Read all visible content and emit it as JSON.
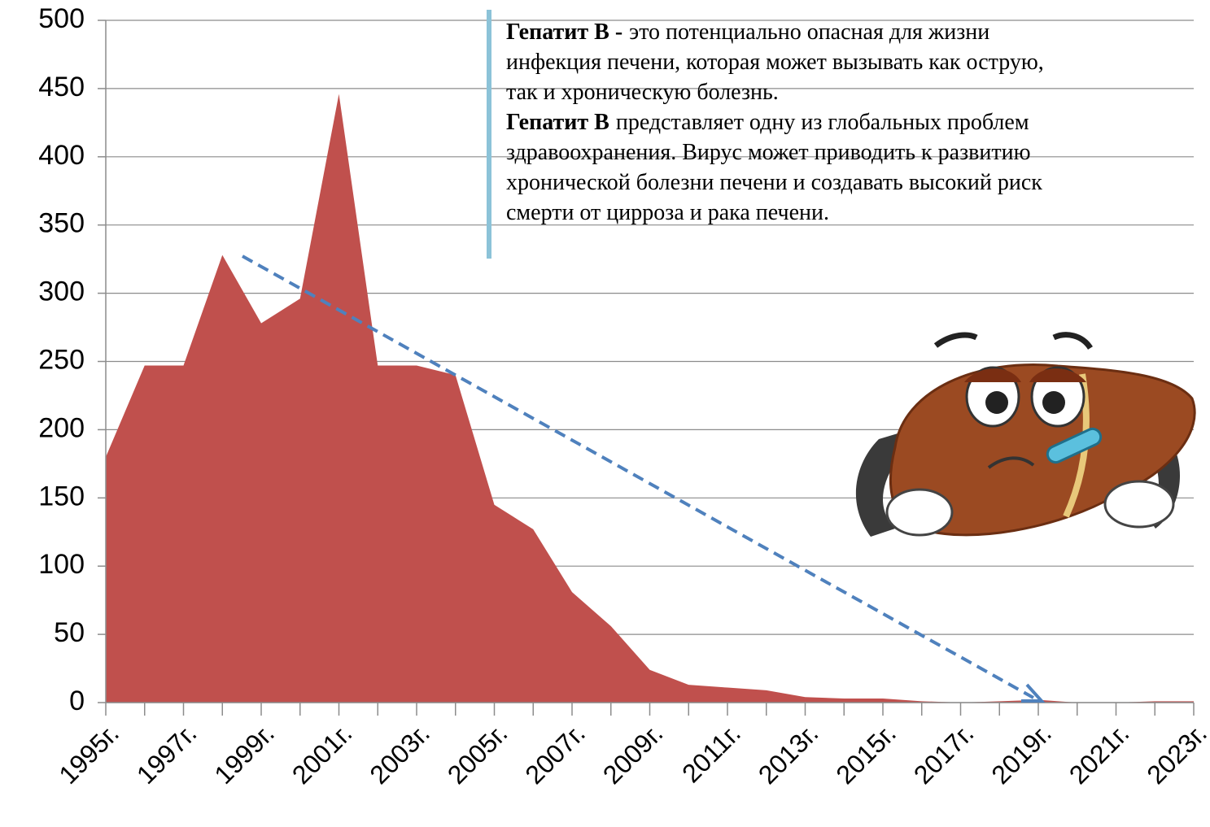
{
  "chart_data": {
    "type": "area",
    "categories": [
      "1995г.",
      null,
      "1997г.",
      null,
      "1999г.",
      null,
      "2001г.",
      null,
      "2003г.",
      null,
      "2005г.",
      null,
      "2007г.",
      null,
      "2009г.",
      null,
      "2011г.",
      null,
      "2013г.",
      null,
      "2015г.",
      null,
      "2017г.",
      null,
      "2019г.",
      null,
      "2021г.",
      null,
      "2023г."
    ],
    "values": [
      180,
      247,
      247,
      328,
      278,
      296,
      446,
      247,
      247,
      240,
      145,
      127,
      81,
      56,
      24,
      13,
      11,
      9,
      4,
      3,
      3,
      1,
      0,
      1,
      2,
      0,
      0,
      1,
      1
    ],
    "color": "#c0504d",
    "ylim": [
      0,
      500
    ],
    "yticks": [
      0,
      50,
      100,
      150,
      200,
      250,
      300,
      350,
      400,
      450,
      500
    ],
    "grid": true,
    "annotation": {
      "paragraphs": [
        {
          "bold": "Гепатит В -",
          "lines": [
            "это потенциально опасная для жизни",
            "инфекция печени, которая может вызывать как острую,",
            "так и хроническую болезнь."
          ]
        },
        {
          "bold": "Гепатит В",
          "lines": [
            "представляет одну из глобальных проблем",
            "здравоохранения. Вирус может приводить к развитию",
            "хронической болезни печени и создавать высокий риск",
            "смерти от цирроза и рака печени."
          ]
        }
      ]
    }
  }
}
